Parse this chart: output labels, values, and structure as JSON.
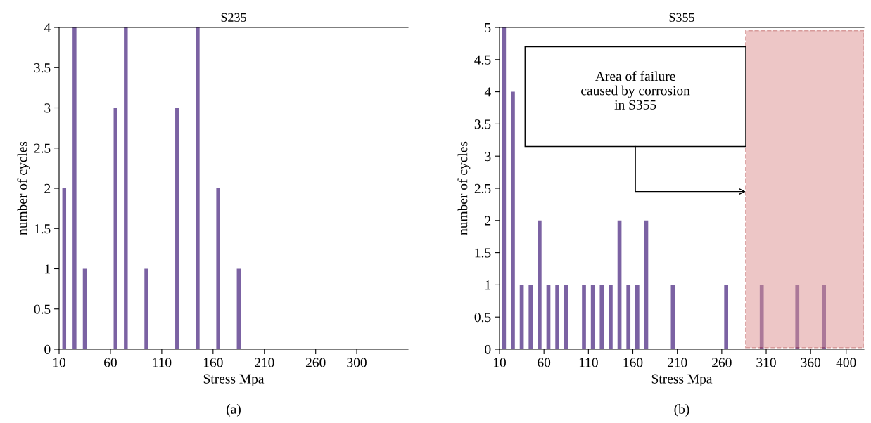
{
  "chart_data": [
    {
      "type": "bar",
      "title": "S235",
      "xlabel": "Stress Mpa",
      "ylabel": "number of cycles",
      "x": [
        15,
        25,
        35,
        65,
        75,
        95,
        125,
        145,
        165,
        185
      ],
      "values": [
        2,
        4,
        1,
        3,
        4,
        1,
        3,
        4,
        2,
        1
      ],
      "color": "#7b62a3",
      "xlim": [
        10,
        350
      ],
      "xticks": [
        10,
        60,
        110,
        160,
        210,
        260,
        300
      ],
      "ylim": [
        0,
        4
      ],
      "yticks": [
        0,
        0.5,
        1,
        1.5,
        2,
        2.5,
        3,
        3.5,
        4
      ],
      "annotations": [
        "(a)"
      ]
    },
    {
      "type": "bar",
      "title": "S355",
      "xlabel": "Stress Mpa",
      "ylabel": "number of cycles",
      "x": [
        15,
        25,
        35,
        45,
        55,
        65,
        75,
        85,
        105,
        115,
        125,
        135,
        145,
        155,
        165,
        175,
        205,
        265,
        305,
        345,
        375
      ],
      "values": [
        5,
        4,
        1,
        1,
        2,
        1,
        1,
        1,
        1,
        1,
        1,
        1,
        2,
        1,
        1,
        2,
        1,
        1,
        1,
        1,
        1
      ],
      "color": "#7b62a3",
      "xlim": [
        10,
        420
      ],
      "xticks": [
        10,
        60,
        110,
        160,
        210,
        260,
        310,
        360,
        400
      ],
      "ylim": [
        0,
        5
      ],
      "yticks": [
        0,
        0.5,
        1,
        1.5,
        2,
        2.5,
        3,
        3.5,
        4,
        4.5,
        5
      ],
      "bands": [
        {
          "axis": "x",
          "from": 287,
          "to": 420,
          "color": "#dc8f8f"
        }
      ],
      "annotations": [
        "Area of failure\ncaused by corrosion\nin S355",
        "(b)"
      ]
    }
  ]
}
